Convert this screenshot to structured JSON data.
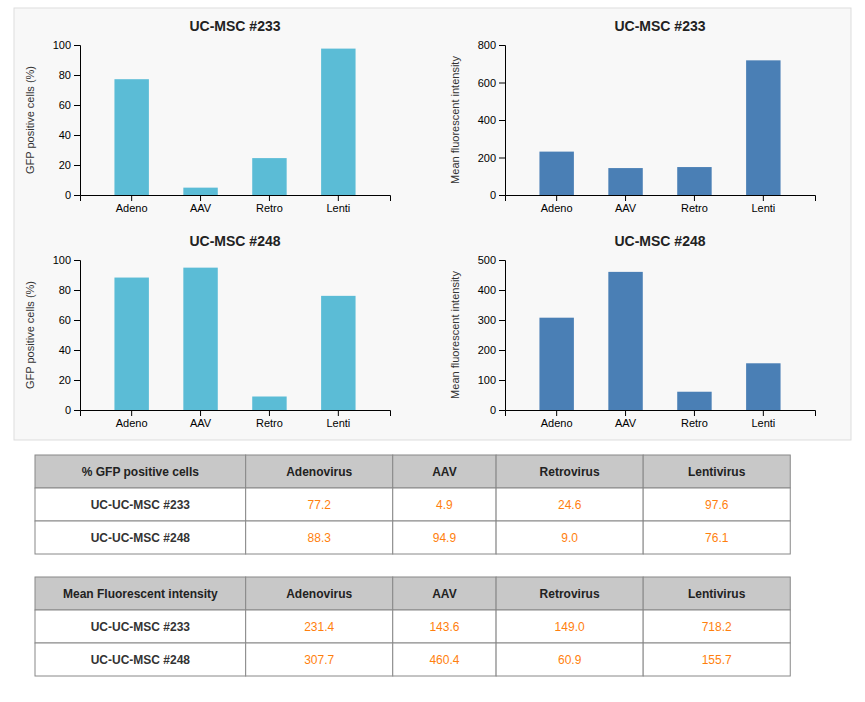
{
  "chart_data": [
    {
      "type": "bar",
      "title": "UC-MSC #233",
      "ylabel": "GFP positive cells (%)",
      "categories": [
        "Adeno",
        "AAV",
        "Retro",
        "Lenti"
      ],
      "values": [
        77.2,
        4.9,
        24.6,
        97.6
      ],
      "color": "#5bbcd6",
      "ylim": [
        0,
        100
      ],
      "yticks": [
        0,
        20,
        40,
        60,
        80,
        100
      ],
      "grid": false
    },
    {
      "type": "bar",
      "title": "UC-MSC #233",
      "ylabel": "Mean fluorescent intensity",
      "categories": [
        "Adeno",
        "AAV",
        "Retro",
        "Lenti"
      ],
      "values": [
        231.4,
        143.6,
        149.0,
        718.2
      ],
      "color": "#4a7fb5",
      "ylim": [
        0,
        800
      ],
      "yticks": [
        0,
        200,
        400,
        600,
        800
      ],
      "grid": false
    },
    {
      "type": "bar",
      "title": "UC-MSC #248",
      "ylabel": "GFP positive cells (%)",
      "categories": [
        "Adeno",
        "AAV",
        "Retro",
        "Lenti"
      ],
      "values": [
        88.3,
        94.9,
        9.0,
        76.1
      ],
      "color": "#5bbcd6",
      "ylim": [
        0,
        100
      ],
      "yticks": [
        0,
        20,
        40,
        60,
        80,
        100
      ],
      "grid": false
    },
    {
      "type": "bar",
      "title": "UC-MSC #248",
      "ylabel": "Mean fluorescent intensity",
      "categories": [
        "Adeno",
        "AAV",
        "Retro",
        "Lenti"
      ],
      "values": [
        307.7,
        460.4,
        60.9,
        155.7
      ],
      "color": "#4a7fb5",
      "ylim": [
        0,
        500
      ],
      "yticks": [
        0,
        100,
        200,
        300,
        400,
        500
      ],
      "grid": false
    },
    {
      "type": "table",
      "header": [
        "% GFP positive cells",
        "Adenovirus",
        "AAV",
        "Retrovirus",
        "Lentivirus"
      ],
      "rows": [
        [
          "UC-UC-MSC #233",
          "77.2",
          "4.9",
          "24.6",
          "97.6"
        ],
        [
          "UC-UC-MSC #248",
          "88.3",
          "94.9",
          "9.0",
          "76.1"
        ]
      ]
    },
    {
      "type": "table",
      "header": [
        "Mean Fluorescent intensity",
        "Adenovirus",
        "AAV",
        "Retrovirus",
        "Lentivirus"
      ],
      "rows": [
        [
          "UC-UC-MSC #233",
          "231.4",
          "143.6",
          "149.0",
          "718.2"
        ],
        [
          "UC-UC-MSC #248",
          "307.7",
          "460.4",
          "60.9",
          "155.7"
        ]
      ]
    }
  ]
}
